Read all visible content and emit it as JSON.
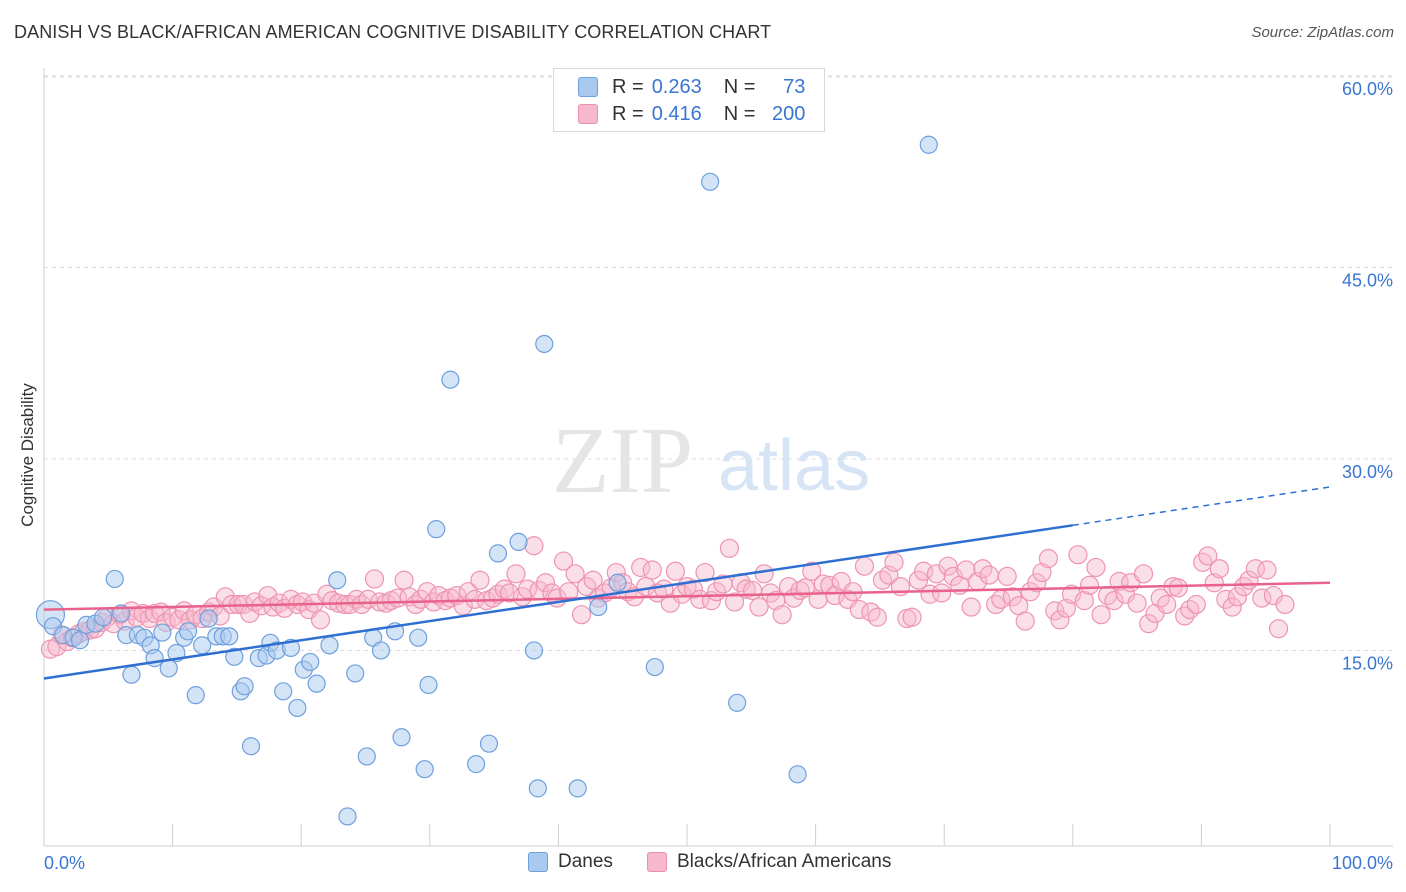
{
  "title": "DANISH VS BLACK/AFRICAN AMERICAN COGNITIVE DISABILITY CORRELATION CHART",
  "source": "Source: ZipAtlas.com",
  "watermark": {
    "zip": "ZIP",
    "atlas": "atlas"
  },
  "legend": {
    "rows": [
      {
        "r_label": "R =",
        "r_value": "0.263",
        "n_label": "N =",
        "n_value": "73"
      },
      {
        "r_label": "R =",
        "r_value": "0.416",
        "n_label": "N =",
        "n_value": "200"
      }
    ]
  },
  "colors": {
    "blue_fill": "#a9c9ef",
    "blue_line": "#2f6fd1",
    "pink_fill": "#f6b8cb",
    "pink_line": "#e9628b",
    "axis_text": "#3a76d1"
  },
  "chart_data": {
    "type": "scatter",
    "title": "DANISH VS BLACK/AFRICAN AMERICAN COGNITIVE DISABILITY CORRELATION CHART",
    "xlabel": "",
    "ylabel": "Cognitive Disability",
    "xlim": [
      0,
      100
    ],
    "ylim": [
      0,
      62
    ],
    "x_tick_labels": [
      "0.0%",
      "100.0%"
    ],
    "y_ticks": [
      15,
      30,
      45,
      60
    ],
    "y_tick_labels": [
      "15.0%",
      "30.0%",
      "45.0%",
      "60.0%"
    ],
    "grid": true,
    "legend_position": "bottom",
    "series": [
      {
        "name": "Danes",
        "color": "#a9c9ef",
        "trend": {
          "x": [
            0,
            80,
            100
          ],
          "y": [
            12.8,
            24.8,
            27.8
          ],
          "solid_until_x": 80
        },
        "points": [
          [
            0.5,
            17.8
          ],
          [
            0.7,
            16.9
          ],
          [
            1.5,
            16.2
          ],
          [
            2.3,
            16.0
          ],
          [
            2.8,
            15.8
          ],
          [
            3.3,
            17.0
          ],
          [
            4,
            17.1
          ],
          [
            4.6,
            17.6
          ],
          [
            5.5,
            20.6
          ],
          [
            6,
            17.9
          ],
          [
            6.4,
            16.2
          ],
          [
            6.8,
            13.1
          ],
          [
            7.3,
            16.2
          ],
          [
            7.8,
            16.0
          ],
          [
            8.3,
            15.4
          ],
          [
            8.6,
            14.4
          ],
          [
            9.2,
            16.4
          ],
          [
            9.7,
            13.6
          ],
          [
            10.3,
            14.8
          ],
          [
            10.9,
            16.0
          ],
          [
            11.2,
            16.5
          ],
          [
            11.8,
            11.5
          ],
          [
            12.3,
            15.4
          ],
          [
            12.8,
            17.5
          ],
          [
            13.4,
            16.1
          ],
          [
            13.9,
            16.1
          ],
          [
            14.4,
            16.1
          ],
          [
            14.8,
            14.5
          ],
          [
            15.3,
            11.8
          ],
          [
            15.6,
            12.2
          ],
          [
            16.1,
            7.5
          ],
          [
            16.7,
            14.4
          ],
          [
            17.3,
            14.6
          ],
          [
            17.6,
            15.6
          ],
          [
            18.1,
            15.0
          ],
          [
            18.6,
            11.8
          ],
          [
            19.2,
            15.2
          ],
          [
            19.7,
            10.5
          ],
          [
            20.2,
            13.5
          ],
          [
            20.7,
            14.1
          ],
          [
            21.2,
            12.4
          ],
          [
            22.2,
            15.4
          ],
          [
            22.8,
            20.5
          ],
          [
            23.6,
            2.0
          ],
          [
            24.2,
            13.2
          ],
          [
            25.1,
            6.7
          ],
          [
            25.6,
            16.0
          ],
          [
            26.2,
            15.0
          ],
          [
            27.3,
            16.5
          ],
          [
            27.8,
            8.2
          ],
          [
            29.1,
            16.0
          ],
          [
            29.6,
            5.7
          ],
          [
            29.9,
            12.3
          ],
          [
            30.5,
            24.5
          ],
          [
            31.6,
            36.2
          ],
          [
            33.6,
            6.1
          ],
          [
            34.6,
            7.7
          ],
          [
            35.3,
            22.6
          ],
          [
            36.9,
            23.5
          ],
          [
            38.1,
            15.0
          ],
          [
            38.4,
            4.2
          ],
          [
            38.9,
            39.0
          ],
          [
            41.5,
            4.2
          ],
          [
            43.1,
            18.4
          ],
          [
            44.6,
            20.3
          ],
          [
            47.5,
            13.7
          ],
          [
            51.8,
            51.7
          ],
          [
            53.9,
            10.9
          ],
          [
            58.6,
            5.3
          ],
          [
            68.8,
            54.6
          ]
        ]
      },
      {
        "name": "Blacks/African Americans",
        "color": "#f6b8cb",
        "trend": {
          "x": [
            0,
            100
          ],
          "y": [
            18.2,
            20.3
          ]
        },
        "points": [
          [
            0.5,
            15.1
          ],
          [
            1,
            15.3
          ],
          [
            1.4,
            16.2
          ],
          [
            1.8,
            15.7
          ],
          [
            2.2,
            16.0
          ],
          [
            2.7,
            16.3
          ],
          [
            3.1,
            16.5
          ],
          [
            3.6,
            16.6
          ],
          [
            4,
            16.7
          ],
          [
            4.5,
            17.2
          ],
          [
            4.9,
            17.6
          ],
          [
            5.4,
            17.1
          ],
          [
            5.9,
            17.8
          ],
          [
            6.3,
            17.3
          ],
          [
            6.8,
            18.1
          ],
          [
            7.2,
            17.6
          ],
          [
            7.7,
            17.9
          ],
          [
            8.2,
            17.5
          ],
          [
            8.6,
            17.9
          ],
          [
            9.1,
            18.0
          ],
          [
            9.5,
            17.2
          ],
          [
            10,
            17.6
          ],
          [
            10.5,
            17.4
          ],
          [
            10.9,
            18.1
          ],
          [
            11.4,
            17.4
          ],
          [
            11.8,
            17.8
          ],
          [
            12.3,
            17.5
          ],
          [
            12.8,
            18.0
          ],
          [
            13.2,
            18.4
          ],
          [
            13.7,
            17.7
          ],
          [
            14.1,
            19.2
          ],
          [
            14.6,
            18.6
          ],
          [
            15.1,
            18.6
          ],
          [
            15.5,
            18.6
          ],
          [
            16,
            17.9
          ],
          [
            16.4,
            18.8
          ],
          [
            16.9,
            18.5
          ],
          [
            17.4,
            19.3
          ],
          [
            17.8,
            18.4
          ],
          [
            18.3,
            18.7
          ],
          [
            18.7,
            18.3
          ],
          [
            19.2,
            19.0
          ],
          [
            19.7,
            18.6
          ],
          [
            20.1,
            18.8
          ],
          [
            20.6,
            18.2
          ],
          [
            21,
            18.7
          ],
          [
            21.5,
            17.4
          ],
          [
            22,
            19.4
          ],
          [
            22.4,
            18.9
          ],
          [
            22.9,
            18.7
          ],
          [
            23.4,
            18.6
          ],
          [
            23.8,
            18.6
          ],
          [
            24.3,
            19.0
          ],
          [
            24.7,
            18.6
          ],
          [
            25.2,
            19.0
          ],
          [
            25.7,
            20.6
          ],
          [
            26.1,
            18.8
          ],
          [
            26.6,
            18.7
          ],
          [
            27,
            18.9
          ],
          [
            27.5,
            19.1
          ],
          [
            28,
            20.5
          ],
          [
            28.4,
            19.2
          ],
          [
            28.9,
            18.6
          ],
          [
            29.3,
            19.0
          ],
          [
            29.8,
            19.6
          ],
          [
            30.3,
            18.8
          ],
          [
            30.7,
            19.3
          ],
          [
            31.2,
            18.9
          ],
          [
            31.6,
            19.1
          ],
          [
            32.1,
            19.3
          ],
          [
            32.6,
            18.5
          ],
          [
            33,
            19.6
          ],
          [
            33.5,
            19.0
          ],
          [
            33.9,
            20.5
          ],
          [
            34.4,
            18.9
          ],
          [
            34.9,
            19.1
          ],
          [
            35.3,
            19.4
          ],
          [
            35.8,
            19.8
          ],
          [
            36.2,
            19.5
          ],
          [
            36.7,
            21.0
          ],
          [
            37.2,
            19.2
          ],
          [
            37.6,
            19.8
          ],
          [
            38.1,
            23.2
          ],
          [
            38.5,
            19.7
          ],
          [
            39,
            20.3
          ],
          [
            39.5,
            19.5
          ],
          [
            39.9,
            19.1
          ],
          [
            40.4,
            22.0
          ],
          [
            40.8,
            19.6
          ],
          [
            41.3,
            21.0
          ],
          [
            41.8,
            17.8
          ],
          [
            42.2,
            20.0
          ],
          [
            42.7,
            20.5
          ],
          [
            43.1,
            19.1
          ],
          [
            43.6,
            19.5
          ],
          [
            44.1,
            19.9
          ],
          [
            44.5,
            21.1
          ],
          [
            45,
            20.3
          ],
          [
            45.4,
            19.6
          ],
          [
            45.9,
            19.2
          ],
          [
            46.4,
            21.5
          ],
          [
            46.8,
            20.0
          ],
          [
            47.3,
            21.3
          ],
          [
            47.7,
            19.5
          ],
          [
            48.2,
            19.8
          ],
          [
            48.7,
            18.7
          ],
          [
            49.1,
            21.2
          ],
          [
            49.6,
            19.4
          ],
          [
            50,
            20.0
          ],
          [
            50.5,
            19.8
          ],
          [
            51,
            19.0
          ],
          [
            51.4,
            21.1
          ],
          [
            51.9,
            18.9
          ],
          [
            52.3,
            19.6
          ],
          [
            52.8,
            20.2
          ],
          [
            53.3,
            23.0
          ],
          [
            53.7,
            18.8
          ],
          [
            54.2,
            20.3
          ],
          [
            54.6,
            19.8
          ],
          [
            55.1,
            19.7
          ],
          [
            55.6,
            18.4
          ],
          [
            56,
            21.0
          ],
          [
            56.5,
            19.5
          ],
          [
            56.9,
            18.9
          ],
          [
            57.4,
            17.8
          ],
          [
            57.9,
            20.0
          ],
          [
            58.3,
            19.1
          ],
          [
            58.8,
            19.7
          ],
          [
            59.2,
            19.9
          ],
          [
            59.7,
            21.2
          ],
          [
            60.2,
            19.0
          ],
          [
            60.6,
            20.2
          ],
          [
            61.1,
            20.1
          ],
          [
            61.5,
            19.3
          ],
          [
            62,
            20.4
          ],
          [
            62.5,
            19.0
          ],
          [
            62.9,
            19.6
          ],
          [
            63.4,
            18.2
          ],
          [
            63.8,
            21.6
          ],
          [
            64.3,
            18.0
          ],
          [
            64.8,
            17.6
          ],
          [
            65.2,
            20.5
          ],
          [
            65.7,
            20.9
          ],
          [
            66.1,
            21.9
          ],
          [
            66.6,
            20.0
          ],
          [
            67.1,
            17.5
          ],
          [
            67.5,
            17.6
          ],
          [
            68,
            20.5
          ],
          [
            68.4,
            21.2
          ],
          [
            68.9,
            19.4
          ],
          [
            69.4,
            21.0
          ],
          [
            69.8,
            19.5
          ],
          [
            70.3,
            21.6
          ],
          [
            70.7,
            20.8
          ],
          [
            71.2,
            20.1
          ],
          [
            71.7,
            21.3
          ],
          [
            72.1,
            18.4
          ],
          [
            72.6,
            20.4
          ],
          [
            73,
            21.4
          ],
          [
            73.5,
            20.9
          ],
          [
            74,
            18.6
          ],
          [
            74.4,
            19.0
          ],
          [
            74.9,
            20.8
          ],
          [
            75.3,
            19.2
          ],
          [
            75.8,
            18.5
          ],
          [
            76.3,
            17.3
          ],
          [
            76.7,
            19.6
          ],
          [
            77.2,
            20.3
          ],
          [
            77.6,
            21.1
          ],
          [
            78.1,
            22.2
          ],
          [
            78.6,
            18.1
          ],
          [
            79,
            17.4
          ],
          [
            79.5,
            18.3
          ],
          [
            79.9,
            19.4
          ],
          [
            80.4,
            22.5
          ],
          [
            80.9,
            18.9
          ],
          [
            81.3,
            20.1
          ],
          [
            81.8,
            21.5
          ],
          [
            82.2,
            17.8
          ],
          [
            82.7,
            19.3
          ],
          [
            83.2,
            18.9
          ],
          [
            83.6,
            20.4
          ],
          [
            84.1,
            19.4
          ],
          [
            84.5,
            20.3
          ],
          [
            85,
            18.7
          ],
          [
            85.5,
            21.0
          ],
          [
            85.9,
            17.1
          ],
          [
            86.4,
            17.9
          ],
          [
            86.8,
            19.1
          ],
          [
            87.3,
            18.6
          ],
          [
            87.8,
            20.0
          ],
          [
            88.2,
            19.9
          ],
          [
            88.7,
            17.7
          ],
          [
            89.1,
            18.2
          ],
          [
            89.6,
            18.6
          ],
          [
            90.1,
            21.9
          ],
          [
            90.5,
            22.4
          ],
          [
            91,
            20.3
          ],
          [
            91.4,
            21.4
          ],
          [
            91.9,
            19.0
          ],
          [
            92.4,
            18.4
          ],
          [
            92.8,
            19.2
          ],
          [
            93.3,
            20.0
          ],
          [
            93.7,
            20.5
          ],
          [
            94.2,
            21.4
          ],
          [
            94.7,
            19.1
          ],
          [
            95.1,
            21.3
          ],
          [
            95.6,
            19.3
          ],
          [
            96,
            16.7
          ],
          [
            96.5,
            18.6
          ]
        ]
      }
    ]
  }
}
